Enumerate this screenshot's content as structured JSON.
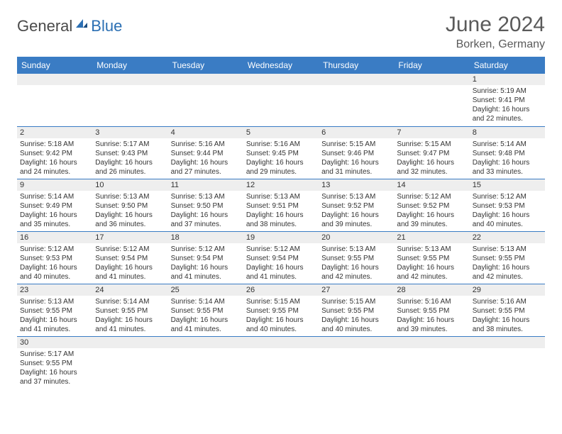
{
  "brand": {
    "part1": "General",
    "part2": "Blue"
  },
  "title": "June 2024",
  "location": "Borken, Germany",
  "colors": {
    "header_bg": "#3a7cc4",
    "header_fg": "#ffffff",
    "row_border": "#3a7cc4",
    "daynum_bg": "#eeeeee",
    "brand_blue": "#2b6fb3",
    "brand_gray": "#4a4a4a",
    "text": "#333333",
    "title_color": "#5a5a5a"
  },
  "typography": {
    "title_fontsize": 30,
    "subtitle_fontsize": 16,
    "weekday_fontsize": 12,
    "daynum_fontsize": 11,
    "body_fontsize": 10,
    "logo_fontsize": 22
  },
  "weekdays": [
    "Sunday",
    "Monday",
    "Tuesday",
    "Wednesday",
    "Thursday",
    "Friday",
    "Saturday"
  ],
  "labels": {
    "sunrise": "Sunrise:",
    "sunset": "Sunset:",
    "daylight": "Daylight:"
  },
  "weeks": [
    [
      null,
      null,
      null,
      null,
      null,
      null,
      {
        "n": "1",
        "sr": "5:19 AM",
        "ss": "9:41 PM",
        "dl": "16 hours and 22 minutes."
      }
    ],
    [
      {
        "n": "2",
        "sr": "5:18 AM",
        "ss": "9:42 PM",
        "dl": "16 hours and 24 minutes."
      },
      {
        "n": "3",
        "sr": "5:17 AM",
        "ss": "9:43 PM",
        "dl": "16 hours and 26 minutes."
      },
      {
        "n": "4",
        "sr": "5:16 AM",
        "ss": "9:44 PM",
        "dl": "16 hours and 27 minutes."
      },
      {
        "n": "5",
        "sr": "5:16 AM",
        "ss": "9:45 PM",
        "dl": "16 hours and 29 minutes."
      },
      {
        "n": "6",
        "sr": "5:15 AM",
        "ss": "9:46 PM",
        "dl": "16 hours and 31 minutes."
      },
      {
        "n": "7",
        "sr": "5:15 AM",
        "ss": "9:47 PM",
        "dl": "16 hours and 32 minutes."
      },
      {
        "n": "8",
        "sr": "5:14 AM",
        "ss": "9:48 PM",
        "dl": "16 hours and 33 minutes."
      }
    ],
    [
      {
        "n": "9",
        "sr": "5:14 AM",
        "ss": "9:49 PM",
        "dl": "16 hours and 35 minutes."
      },
      {
        "n": "10",
        "sr": "5:13 AM",
        "ss": "9:50 PM",
        "dl": "16 hours and 36 minutes."
      },
      {
        "n": "11",
        "sr": "5:13 AM",
        "ss": "9:50 PM",
        "dl": "16 hours and 37 minutes."
      },
      {
        "n": "12",
        "sr": "5:13 AM",
        "ss": "9:51 PM",
        "dl": "16 hours and 38 minutes."
      },
      {
        "n": "13",
        "sr": "5:13 AM",
        "ss": "9:52 PM",
        "dl": "16 hours and 39 minutes."
      },
      {
        "n": "14",
        "sr": "5:12 AM",
        "ss": "9:52 PM",
        "dl": "16 hours and 39 minutes."
      },
      {
        "n": "15",
        "sr": "5:12 AM",
        "ss": "9:53 PM",
        "dl": "16 hours and 40 minutes."
      }
    ],
    [
      {
        "n": "16",
        "sr": "5:12 AM",
        "ss": "9:53 PM",
        "dl": "16 hours and 40 minutes."
      },
      {
        "n": "17",
        "sr": "5:12 AM",
        "ss": "9:54 PM",
        "dl": "16 hours and 41 minutes."
      },
      {
        "n": "18",
        "sr": "5:12 AM",
        "ss": "9:54 PM",
        "dl": "16 hours and 41 minutes."
      },
      {
        "n": "19",
        "sr": "5:12 AM",
        "ss": "9:54 PM",
        "dl": "16 hours and 41 minutes."
      },
      {
        "n": "20",
        "sr": "5:13 AM",
        "ss": "9:55 PM",
        "dl": "16 hours and 42 minutes."
      },
      {
        "n": "21",
        "sr": "5:13 AM",
        "ss": "9:55 PM",
        "dl": "16 hours and 42 minutes."
      },
      {
        "n": "22",
        "sr": "5:13 AM",
        "ss": "9:55 PM",
        "dl": "16 hours and 42 minutes."
      }
    ],
    [
      {
        "n": "23",
        "sr": "5:13 AM",
        "ss": "9:55 PM",
        "dl": "16 hours and 41 minutes."
      },
      {
        "n": "24",
        "sr": "5:14 AM",
        "ss": "9:55 PM",
        "dl": "16 hours and 41 minutes."
      },
      {
        "n": "25",
        "sr": "5:14 AM",
        "ss": "9:55 PM",
        "dl": "16 hours and 41 minutes."
      },
      {
        "n": "26",
        "sr": "5:15 AM",
        "ss": "9:55 PM",
        "dl": "16 hours and 40 minutes."
      },
      {
        "n": "27",
        "sr": "5:15 AM",
        "ss": "9:55 PM",
        "dl": "16 hours and 40 minutes."
      },
      {
        "n": "28",
        "sr": "5:16 AM",
        "ss": "9:55 PM",
        "dl": "16 hours and 39 minutes."
      },
      {
        "n": "29",
        "sr": "5:16 AM",
        "ss": "9:55 PM",
        "dl": "16 hours and 38 minutes."
      }
    ],
    [
      {
        "n": "30",
        "sr": "5:17 AM",
        "ss": "9:55 PM",
        "dl": "16 hours and 37 minutes."
      },
      null,
      null,
      null,
      null,
      null,
      null
    ]
  ]
}
